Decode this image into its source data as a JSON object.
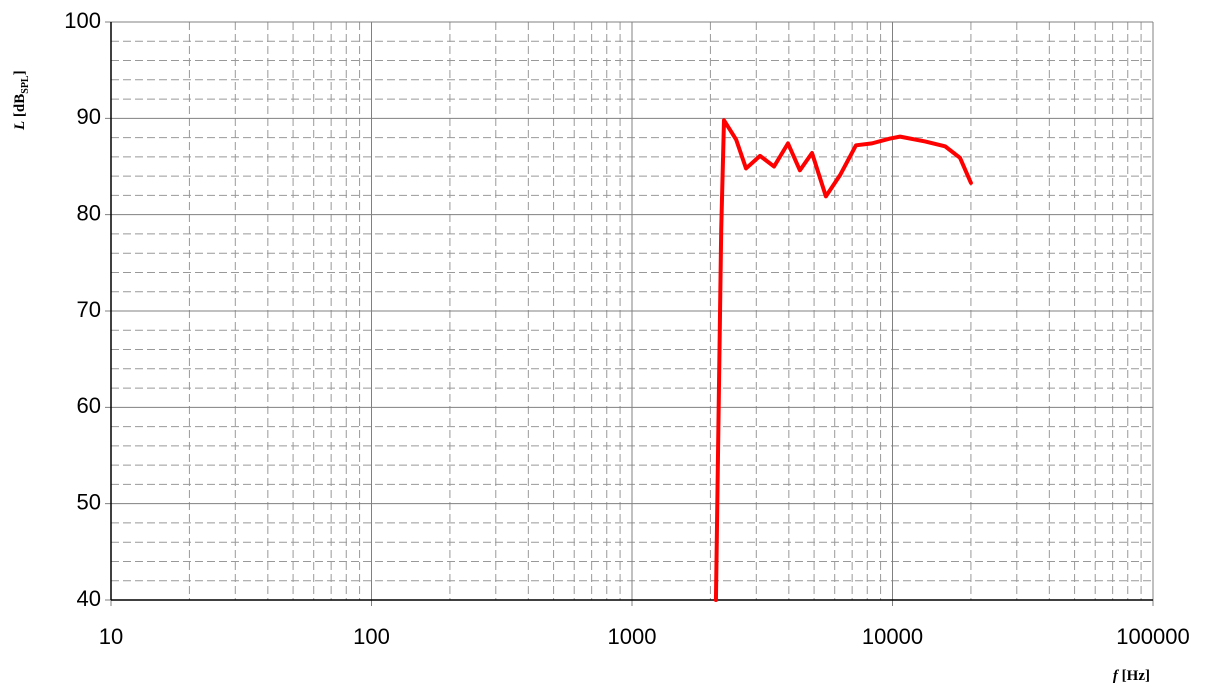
{
  "chart_data": {
    "type": "line",
    "xscale": "log",
    "ylabel": [
      "L",
      "[dB",
      "SPL",
      "]"
    ],
    "xlabel": [
      "f",
      "[Hz]"
    ],
    "x": [
      2100,
      2200,
      2255,
      2510,
      2740,
      3100,
      3510,
      3970,
      4410,
      4910,
      5550,
      6290,
      7240,
      8340,
      9780,
      10690,
      13330,
      15910,
      18160,
      20000
    ],
    "series": [
      {
        "name": "L",
        "color": "#ff0000",
        "values": [
          40,
          78.4,
          89.8,
          87.8,
          84.8,
          86.1,
          85.0,
          87.4,
          84.6,
          86.4,
          81.9,
          84.1,
          87.2,
          87.4,
          87.9,
          88.1,
          87.6,
          87.1,
          85.9,
          83.3
        ]
      }
    ],
    "xlim": [
      10,
      100000
    ],
    "xticks": [
      10,
      100,
      1000,
      10000,
      100000
    ],
    "minor_xticks": [
      20,
      30,
      40,
      50,
      60,
      70,
      80,
      90,
      200,
      300,
      400,
      500,
      600,
      700,
      800,
      900,
      2000,
      3000,
      4000,
      5000,
      6000,
      7000,
      8000,
      9000,
      20000,
      30000,
      40000,
      50000,
      60000,
      70000,
      80000,
      90000
    ],
    "ylim": [
      40,
      100
    ],
    "yticks": [
      40,
      50,
      60,
      70,
      80,
      90,
      100
    ],
    "minor_yticks": [
      42,
      44,
      46,
      48,
      52,
      54,
      56,
      58,
      62,
      64,
      66,
      68,
      72,
      74,
      76,
      78,
      82,
      84,
      86,
      88,
      92,
      94,
      96,
      98
    ],
    "grid": true
  }
}
